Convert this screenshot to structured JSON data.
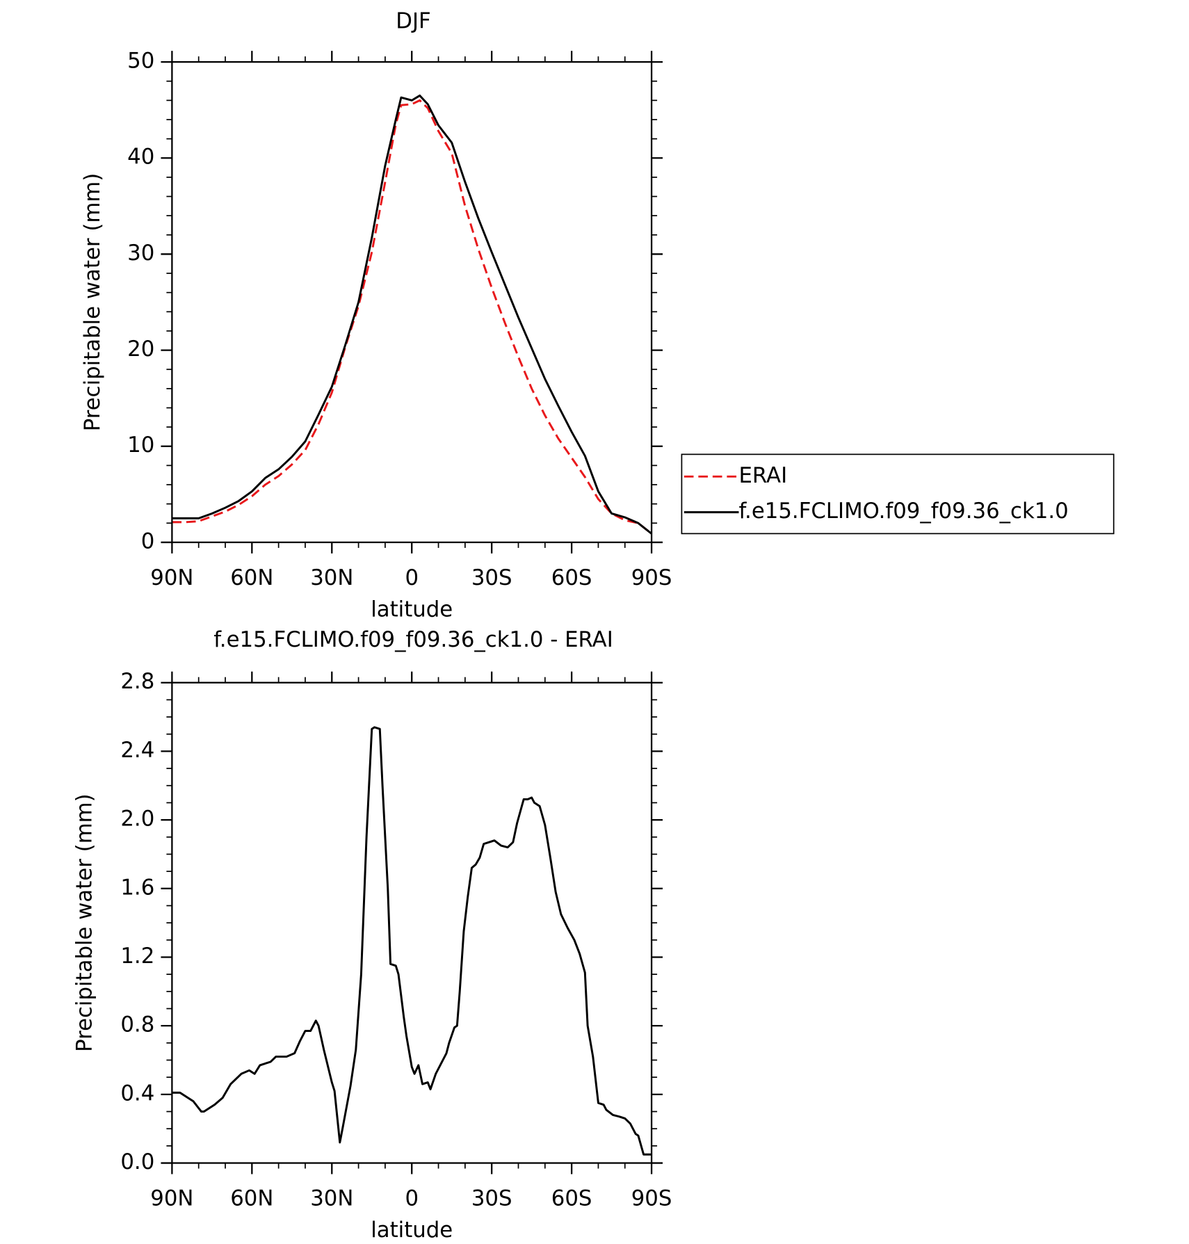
{
  "chart_data": [
    {
      "type": "line",
      "title": "DJF",
      "xlabel": "latitude",
      "ylabel": "Precipitable water (mm)",
      "x": [
        90,
        85,
        80,
        75,
        70,
        65,
        60,
        55,
        50,
        45,
        40,
        35,
        30,
        25,
        20,
        15,
        10,
        6,
        4,
        0,
        -3,
        -6,
        -10,
        -15,
        -20,
        -25,
        -30,
        -35,
        -40,
        -45,
        -50,
        -55,
        -60,
        -65,
        -70,
        -75,
        -80,
        -85,
        -90
      ],
      "series": [
        {
          "name": "ERAI",
          "color": "#e8191c",
          "dashed": true,
          "values": [
            2.1,
            2.1,
            2.2,
            2.7,
            3.2,
            3.9,
            4.8,
            6.0,
            6.9,
            8.1,
            9.6,
            12.3,
            15.6,
            20.3,
            24.6,
            30.2,
            37.5,
            43.5,
            45.5,
            45.6,
            46.0,
            45.2,
            42.8,
            40.5,
            35,
            30.5,
            26.5,
            22.8,
            19.3,
            16,
            13.2,
            10.8,
            8.8,
            6.8,
            4.5,
            3,
            2.3,
            2.0,
            0.9
          ]
        },
        {
          "name": "f.e15.FCLIMO.f09_f09.36_ck1.0",
          "color": "#000000",
          "dashed": false,
          "values": [
            2.5,
            2.5,
            2.5,
            3.0,
            3.6,
            4.3,
            5.3,
            6.7,
            7.6,
            8.9,
            10.5,
            13.3,
            16.2,
            20.5,
            25,
            31.7,
            39.2,
            44,
            46.3,
            46.0,
            46.5,
            45.6,
            43.4,
            41.6,
            37.5,
            33.7,
            30.2,
            26.8,
            23.4,
            20.2,
            17,
            14.2,
            11.5,
            9,
            5.3,
            3,
            2.6,
            2.0,
            0.9
          ]
        }
      ],
      "xlim": [
        90,
        -90
      ],
      "xticks": [
        {
          "value": 90,
          "label": "90N"
        },
        {
          "value": 60,
          "label": "60N"
        },
        {
          "value": 30,
          "label": "30N"
        },
        0,
        {
          "value": -30,
          "label": "30S"
        },
        {
          "value": -60,
          "label": "60S"
        },
        {
          "value": -90,
          "label": "90S"
        }
      ],
      "ylim": [
        0,
        50
      ],
      "yticks": [
        0,
        10,
        20,
        30,
        40,
        50
      ],
      "legend": "right"
    },
    {
      "type": "line",
      "title": "f.e15.FCLIMO.f09_f09.36_ck1.0 - ERAI",
      "xlabel": "latitude",
      "ylabel": "Precipitable water (mm)",
      "x": [
        90,
        87,
        82,
        79,
        78,
        74,
        71,
        68,
        64,
        61,
        59,
        57,
        53,
        51,
        47,
        44,
        42,
        40,
        38,
        36,
        35,
        33,
        30,
        29,
        27,
        26,
        23,
        21,
        19,
        17,
        15,
        14,
        12,
        11,
        9,
        8,
        6,
        5,
        3,
        2,
        0,
        -1,
        -2.5,
        -4,
        -6,
        -7,
        -9,
        -11,
        -13,
        -14,
        -16,
        -17,
        -18,
        -19.5,
        -21,
        -22.5,
        -24,
        -25.5,
        -27,
        -29,
        -31,
        -33.5,
        -36,
        -38,
        -39.5,
        -42,
        -43.5,
        -45,
        -46,
        -48,
        -50,
        -52,
        -54,
        -56,
        -58.5,
        -61,
        -63,
        -65,
        -66,
        -68,
        -70,
        -72,
        -73,
        -75.5,
        -78,
        -80,
        -82,
        -84,
        -85,
        -87,
        -89,
        -90
      ],
      "values": [
        0.41,
        0.41,
        0.36,
        0.3,
        0.3,
        0.34,
        0.38,
        0.46,
        0.52,
        0.54,
        0.52,
        0.57,
        0.59,
        0.62,
        0.62,
        0.64,
        0.71,
        0.77,
        0.77,
        0.83,
        0.8,
        0.66,
        0.47,
        0.42,
        0.12,
        0.2,
        0.45,
        0.66,
        1.1,
        1.9,
        2.53,
        2.54,
        2.53,
        2.2,
        1.6,
        1.16,
        1.15,
        1.1,
        0.85,
        0.74,
        0.56,
        0.52,
        0.57,
        0.46,
        0.47,
        0.43,
        0.52,
        0.58,
        0.64,
        0.7,
        0.79,
        0.8,
        1.0,
        1.35,
        1.55,
        1.72,
        1.74,
        1.78,
        1.86,
        1.87,
        1.88,
        1.85,
        1.84,
        1.87,
        1.98,
        2.12,
        2.12,
        2.13,
        2.1,
        2.08,
        1.97,
        1.78,
        1.58,
        1.45,
        1.37,
        1.3,
        1.22,
        1.11,
        0.8,
        0.62,
        0.35,
        0.34,
        0.31,
        0.28,
        0.27,
        0.26,
        0.23,
        0.17,
        0.16,
        0.05,
        0.05,
        0.05
      ],
      "color": "#000000",
      "xlim": [
        90,
        -90
      ],
      "xticks": [
        {
          "value": 90,
          "label": "90N"
        },
        {
          "value": 60,
          "label": "60N"
        },
        {
          "value": 30,
          "label": "30N"
        },
        0,
        {
          "value": -30,
          "label": "30S"
        },
        {
          "value": -60,
          "label": "60S"
        },
        {
          "value": -90,
          "label": "90S"
        }
      ],
      "ylim": [
        0,
        2.8
      ],
      "yticks": [
        {
          "value": 0,
          "label": "0.0"
        },
        0.4,
        0.8,
        1.2,
        1.6,
        {
          "value": 2,
          "label": "2.0"
        },
        2.4,
        2.8
      ]
    }
  ]
}
